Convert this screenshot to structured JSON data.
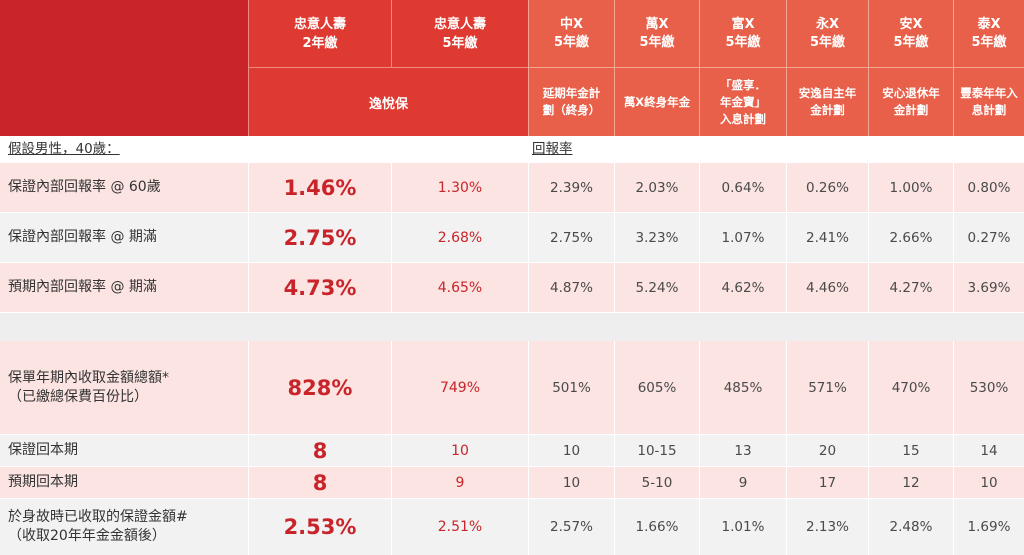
{
  "header": {
    "main_col1": [
      "忠意人壽",
      "2年繳"
    ],
    "main_col2": [
      "忠意人壽",
      "5年繳"
    ],
    "main_plan": "逸悅保",
    "competitors": [
      {
        "name": "中X",
        "term": "5年繳",
        "plan": [
          "延期年金計",
          "劃（終身）"
        ]
      },
      {
        "name": "萬X",
        "term": "5年繳",
        "plan": [
          "萬X終身年金"
        ]
      },
      {
        "name": "富X",
        "term": "5年繳",
        "plan": [
          "「盛享．",
          "年金寶」",
          "入息計劃"
        ]
      },
      {
        "name": "永X",
        "term": "5年繳",
        "plan": [
          "安逸自主年",
          "金計劃"
        ]
      },
      {
        "name": "安X",
        "term": "5年繳",
        "plan": [
          "安心退休年",
          "金計劃"
        ]
      },
      {
        "name": "泰X",
        "term": "5年繳",
        "plan": [
          "豐泰年年入",
          "息計劃"
        ]
      }
    ]
  },
  "assumption": "假設男性，40歲：",
  "section_label": "回報率",
  "rows": [
    {
      "label": [
        "保證內部回報率 @ 60歲"
      ],
      "main": "1.46%",
      "second": "1.30%",
      "others": [
        "2.39%",
        "2.03%",
        "0.64%",
        "0.26%",
        "1.00%",
        "0.80%"
      ]
    },
    {
      "label": [
        "保證內部回報率 @ 期滿"
      ],
      "main": "2.75%",
      "second": "2.68%",
      "others": [
        "2.75%",
        "3.23%",
        "1.07%",
        "2.41%",
        "2.66%",
        "0.27%"
      ]
    },
    {
      "label": [
        "預期內部回報率 @ 期滿"
      ],
      "main": "4.73%",
      "second": "4.65%",
      "others": [
        "4.87%",
        "5.24%",
        "4.62%",
        "4.46%",
        "4.27%",
        "3.69%"
      ]
    },
    {
      "label": [
        "保單年期內收取金額總額*",
        "（已繳總保費百份比）"
      ],
      "main": "828%",
      "second": "749%",
      "others": [
        "501%",
        "605%",
        "485%",
        "571%",
        "470%",
        "530%"
      ]
    },
    {
      "label": [
        "保證回本期"
      ],
      "main": "8",
      "second": "10",
      "others": [
        "10",
        "10-15",
        "13",
        "20",
        "15",
        "14"
      ]
    },
    {
      "label": [
        "預期回本期"
      ],
      "main": "8",
      "second": "9",
      "others": [
        "10",
        "5-10",
        "9",
        "17",
        "12",
        "10"
      ]
    },
    {
      "label": [
        "於身故時已收取的保證金額#",
        "（收取20年年金金額後）"
      ],
      "main": "2.53%",
      "second": "2.51%",
      "others": [
        "2.57%",
        "1.66%",
        "1.01%",
        "2.13%",
        "2.48%",
        "1.69%"
      ]
    }
  ]
}
